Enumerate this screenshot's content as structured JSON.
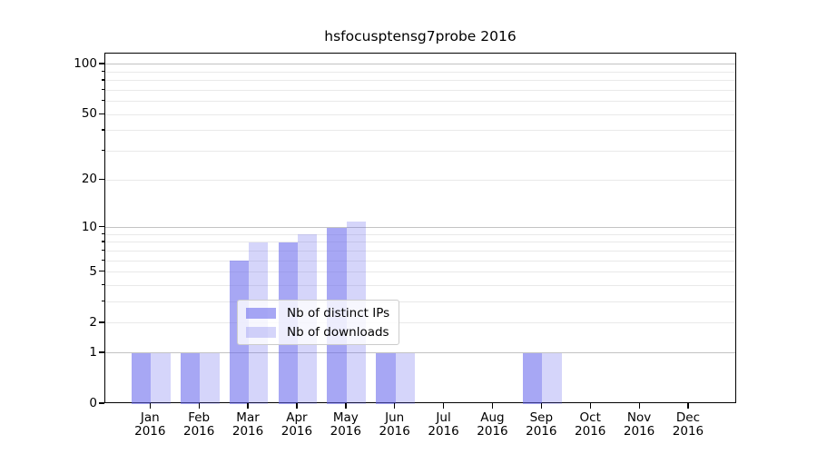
{
  "title": "hsfocusptensg7probe 2016",
  "chart_data": {
    "type": "bar",
    "title": "hsfocusptensg7probe 2016",
    "xlabel": "",
    "ylabel": "",
    "categories": [
      "Jan 2016",
      "Feb 2016",
      "Mar 2016",
      "Apr 2016",
      "May 2016",
      "Jun 2016",
      "Jul 2016",
      "Aug 2016",
      "Sep 2016",
      "Oct 2016",
      "Nov 2016",
      "Dec 2016"
    ],
    "x_tick_months": [
      "Jan",
      "Feb",
      "Mar",
      "Apr",
      "May",
      "Jun",
      "Jul",
      "Aug",
      "Sep",
      "Oct",
      "Nov",
      "Dec"
    ],
    "x_tick_year": "2016",
    "series": [
      {
        "name": "Nb of distinct IPs",
        "color": "rgba(100,100,235,0.57)",
        "values": [
          1,
          1,
          6,
          8,
          10,
          1,
          0,
          0,
          1,
          0,
          0,
          0
        ]
      },
      {
        "name": "Nb of downloads",
        "color": "rgba(100,100,235,0.27)",
        "values": [
          1,
          1,
          8,
          9,
          11,
          1,
          0,
          0,
          1,
          0,
          0,
          0
        ]
      }
    ],
    "y_scale": "log1p",
    "ylim": [
      0,
      116
    ],
    "y_tick_values": [
      0,
      1,
      2,
      5,
      10,
      20,
      50,
      100
    ],
    "y_tick_labels": [
      "0",
      "1",
      "2",
      "5",
      "10",
      "20",
      "50",
      "100"
    ],
    "y_major_gridlines": [
      1,
      10,
      100
    ],
    "y_minor_gridlines": [
      2,
      3,
      4,
      5,
      6,
      7,
      8,
      9,
      20,
      30,
      40,
      50,
      60,
      70,
      80,
      90
    ],
    "grid": "horizontal",
    "legend_position": "lower-center"
  },
  "colors": {
    "background": "#ffffff",
    "bar_distinct_ips": "rgba(100,100,235,0.57)",
    "bar_downloads": "rgba(100,100,235,0.27)",
    "grid_major": "#c3c3c3",
    "grid_minor": "#e9e9e9",
    "spine": "#000000",
    "tick": "#000000",
    "text": "#000000",
    "legend_border": "#cccccc",
    "legend_background": "rgba(255,255,255,0.8)"
  }
}
